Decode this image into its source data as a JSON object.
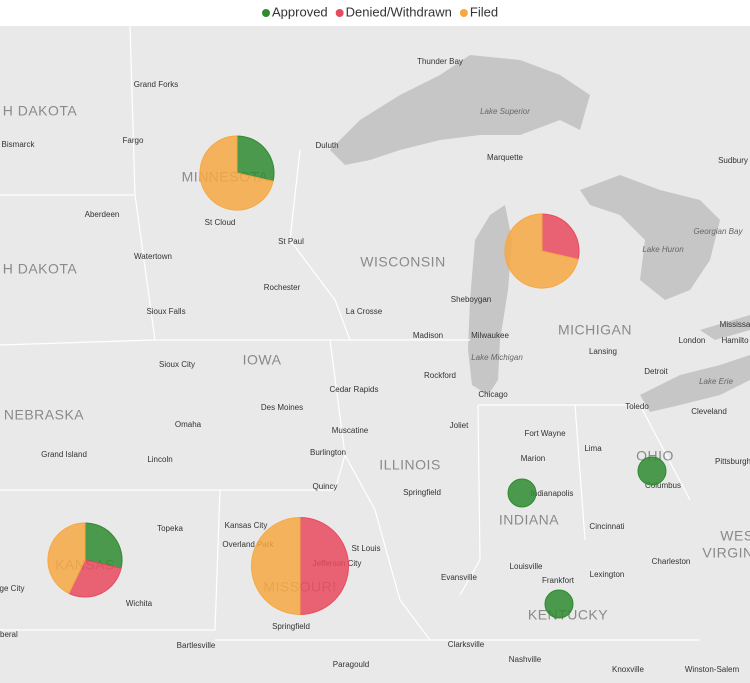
{
  "legend": [
    {
      "name": "Approved",
      "color": "#2e8b30"
    },
    {
      "name": "Denied/Withdrawn",
      "color": "#e84a5f"
    },
    {
      "name": "Filed",
      "color": "#f6a843"
    }
  ],
  "pies": [
    {
      "values": [
        2,
        0,
        5
      ]
    },
    {
      "values": [
        0,
        2,
        5
      ]
    },
    {
      "values": [
        2,
        2,
        3
      ]
    },
    {
      "values": [
        0,
        6,
        6
      ]
    },
    {
      "values": [
        1,
        0,
        0
      ]
    },
    {
      "values": [
        1,
        0,
        0
      ]
    },
    {
      "values": [
        1,
        0,
        0
      ]
    }
  ],
  "states": [
    "H DAKOTA",
    "MINNESOTA",
    "H DAKOTA",
    "WISCONSIN",
    "MICHIGAN",
    "IOWA",
    "NEBRASKA",
    "ILLINOIS",
    "INDIANA",
    "OHIO",
    "KANSAS",
    "MISSOURI",
    "KENTUCKY",
    "WES",
    "VIRGIN"
  ],
  "water": [
    "Lake Superior",
    "Georgian Bay",
    "Lake Huron",
    "Lake Michigan",
    "Lake Erie"
  ],
  "cities": [
    "Grand Forks",
    "Bismarck",
    "Fargo",
    "Duluth",
    "Thunder Bay",
    "Marquette",
    "Sudbury",
    "Aberdeen",
    "St Cloud",
    "St Paul",
    "Watertown",
    "Rochester",
    "Sioux Falls",
    "La Crosse",
    "Sheboygan",
    "Madison",
    "Milwaukee",
    "London",
    "Mississa",
    "Hamilto",
    "Sioux City",
    "Lansing",
    "Detroit",
    "Cedar Rapids",
    "Rockford",
    "Chicago",
    "Des Moines",
    "Toledo",
    "Cleveland",
    "Omaha",
    "Muscatine",
    "Joliet",
    "Fort Wayne",
    "Lima",
    "Pittsburgh",
    "Grand Island",
    "Lincoln",
    "Burlington",
    "Marion",
    "Columbus",
    "Indianapolis",
    "Quincy",
    "Springfield",
    "Topeka",
    "Kansas City",
    "Overland Park",
    "Cincinnati",
    "St Louis",
    "Jefferson City",
    "Charleston",
    "ge City",
    "Wichita",
    "Evansville",
    "Louisville",
    "Frankfort",
    "Lexington",
    "Springfield",
    "iberal",
    "Clarksville",
    "Bartlesville",
    "Paragould",
    "Nashville",
    "Knoxville",
    "Winston-Salem"
  ]
}
